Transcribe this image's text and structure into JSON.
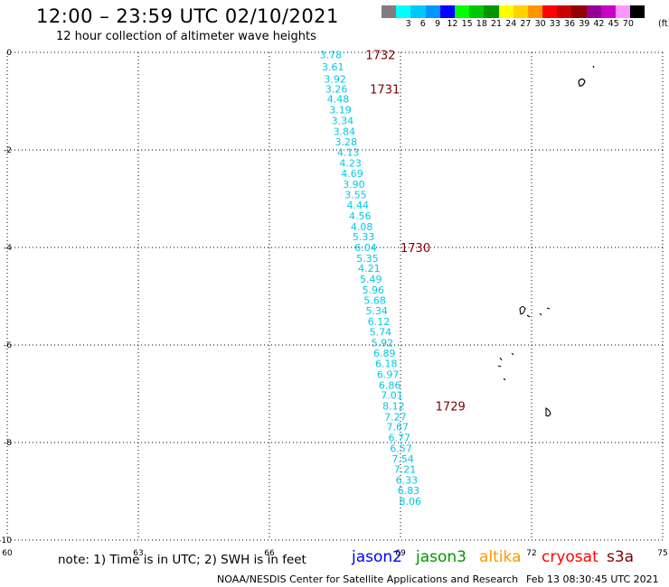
{
  "header": {
    "title": "12:00 – 23:59 UTC 02/10/2021",
    "subtitle": "12 hour collection of altimeter wave heights"
  },
  "legend": {
    "unit": "(ft)",
    "bins": [
      {
        "label": "",
        "color": "#7f7f7f"
      },
      {
        "label": "3",
        "color": "#00ffff"
      },
      {
        "label": "6",
        "color": "#00c8ff"
      },
      {
        "label": "9",
        "color": "#0096ff"
      },
      {
        "label": "12",
        "color": "#0000ff"
      },
      {
        "label": "15",
        "color": "#00ff00"
      },
      {
        "label": "18",
        "color": "#00c800"
      },
      {
        "label": "21",
        "color": "#009600"
      },
      {
        "label": "24",
        "color": "#ffff00"
      },
      {
        "label": "27",
        "color": "#ffd200"
      },
      {
        "label": "30",
        "color": "#ff9600"
      },
      {
        "label": "33",
        "color": "#ff0000"
      },
      {
        "label": "36",
        "color": "#c80000"
      },
      {
        "label": "39",
        "color": "#960000"
      },
      {
        "label": "42",
        "color": "#960096"
      },
      {
        "label": "45",
        "color": "#c800c8"
      },
      {
        "label": "70",
        "color": "#ff96ff"
      },
      {
        "label": "",
        "color": "#000000"
      }
    ]
  },
  "chart_data": {
    "type": "scatter",
    "xlim": [
      60,
      75
    ],
    "ylim": [
      -10,
      0
    ],
    "xticks": [
      "60",
      "63",
      "66",
      "69",
      "72",
      "75"
    ],
    "yticks": [
      "0",
      "-2",
      "-4",
      "-6",
      "-8",
      "-10"
    ],
    "grid": true,
    "value_color": "#00c8e6",
    "time_color": "#800000",
    "swh_ft": [
      {
        "x": 67.15,
        "y": -0.05,
        "value": "3.78"
      },
      {
        "x": 67.2,
        "y": -0.3,
        "value": "3.61"
      },
      {
        "x": 67.25,
        "y": -0.55,
        "value": "3.92"
      },
      {
        "x": 67.28,
        "y": -0.75,
        "value": "3.26"
      },
      {
        "x": 67.32,
        "y": -0.95,
        "value": "4.48"
      },
      {
        "x": 67.37,
        "y": -1.18,
        "value": "3.19"
      },
      {
        "x": 67.42,
        "y": -1.4,
        "value": "3.34"
      },
      {
        "x": 67.46,
        "y": -1.62,
        "value": "3.84"
      },
      {
        "x": 67.5,
        "y": -1.83,
        "value": "3.28"
      },
      {
        "x": 67.55,
        "y": -2.05,
        "value": "4.13"
      },
      {
        "x": 67.6,
        "y": -2.27,
        "value": "4.23"
      },
      {
        "x": 67.64,
        "y": -2.48,
        "value": "4.69"
      },
      {
        "x": 67.68,
        "y": -2.7,
        "value": "3.90"
      },
      {
        "x": 67.72,
        "y": -2.92,
        "value": "3.55"
      },
      {
        "x": 67.77,
        "y": -3.13,
        "value": "4.44"
      },
      {
        "x": 67.82,
        "y": -3.35,
        "value": "4.56"
      },
      {
        "x": 67.86,
        "y": -3.57,
        "value": "4.08"
      },
      {
        "x": 67.9,
        "y": -3.78,
        "value": "5.33"
      },
      {
        "x": 67.95,
        "y": -4.0,
        "value": "6.04"
      },
      {
        "x": 67.99,
        "y": -4.22,
        "value": "5.35"
      },
      {
        "x": 68.03,
        "y": -4.43,
        "value": "4.21"
      },
      {
        "x": 68.07,
        "y": -4.65,
        "value": "5.49"
      },
      {
        "x": 68.12,
        "y": -4.87,
        "value": "5.96"
      },
      {
        "x": 68.16,
        "y": -5.08,
        "value": "5.68"
      },
      {
        "x": 68.2,
        "y": -5.3,
        "value": "5.34"
      },
      {
        "x": 68.25,
        "y": -5.52,
        "value": "6.12"
      },
      {
        "x": 68.29,
        "y": -5.73,
        "value": "5.74"
      },
      {
        "x": 68.33,
        "y": -5.95,
        "value": "5.92"
      },
      {
        "x": 68.38,
        "y": -6.17,
        "value": "6.89"
      },
      {
        "x": 68.42,
        "y": -6.38,
        "value": "6.18"
      },
      {
        "x": 68.46,
        "y": -6.6,
        "value": "6.97"
      },
      {
        "x": 68.5,
        "y": -6.82,
        "value": "6.86"
      },
      {
        "x": 68.55,
        "y": -7.03,
        "value": "7.01"
      },
      {
        "x": 68.59,
        "y": -7.25,
        "value": "8.12"
      },
      {
        "x": 68.63,
        "y": -7.47,
        "value": "7.27"
      },
      {
        "x": 68.68,
        "y": -7.68,
        "value": "7.67"
      },
      {
        "x": 68.72,
        "y": -7.9,
        "value": "6.77"
      },
      {
        "x": 68.76,
        "y": -8.12,
        "value": "6.57"
      },
      {
        "x": 68.8,
        "y": -8.33,
        "value": "7.54"
      },
      {
        "x": 68.85,
        "y": -8.55,
        "value": "7.21"
      },
      {
        "x": 68.89,
        "y": -8.77,
        "value": "6.33"
      },
      {
        "x": 68.93,
        "y": -8.98,
        "value": "6.83"
      },
      {
        "x": 68.97,
        "y": -9.2,
        "value": "8.06"
      }
    ],
    "times_utc": [
      {
        "x": 68.2,
        "y": -0.05,
        "label": "1732"
      },
      {
        "x": 68.3,
        "y": -0.75,
        "label": "1731"
      },
      {
        "x": 69.0,
        "y": -4.0,
        "label": "1730"
      },
      {
        "x": 69.8,
        "y": -7.25,
        "label": "1729"
      }
    ]
  },
  "footer": {
    "note": "note: 1) Time is in UTC; 2) SWH is in feet",
    "satellites": [
      {
        "name": "jason2",
        "color": "#0000ff"
      },
      {
        "name": "jason3",
        "color": "#009600"
      },
      {
        "name": "altika",
        "color": "#ff9600"
      },
      {
        "name": "cryosat",
        "color": "#ff0000"
      },
      {
        "name": "s3a",
        "color": "#800000"
      }
    ],
    "credit": "NOAA/NESDIS Center for Satellite Applications and Research",
    "timestamp": "Feb 13 08:30:45 UTC 2021"
  }
}
